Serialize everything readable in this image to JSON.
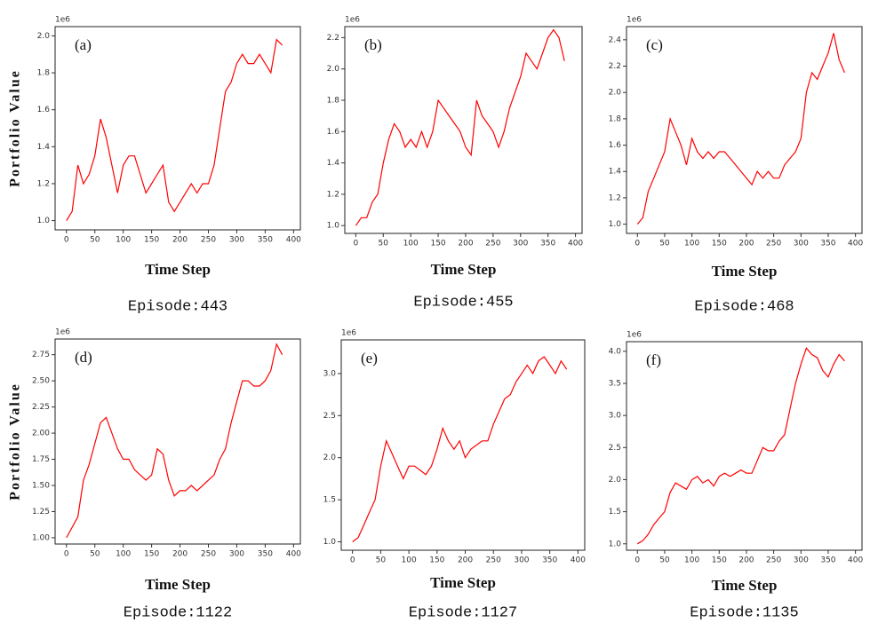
{
  "chart_data": [
    {
      "type": "line",
      "annotation": "(a)",
      "offset_label": "1e6",
      "xlabel": "Time Step",
      "ylabel": "Portfolio Value",
      "caption": "Episode:443",
      "color": "#ff0000",
      "x": [
        0,
        10,
        20,
        30,
        40,
        50,
        60,
        70,
        80,
        90,
        100,
        110,
        120,
        130,
        140,
        150,
        160,
        170,
        180,
        190,
        200,
        210,
        220,
        230,
        240,
        250,
        260,
        270,
        280,
        290,
        300,
        310,
        320,
        330,
        340,
        350,
        360,
        370,
        380
      ],
      "values": [
        1.0,
        1.05,
        1.3,
        1.2,
        1.25,
        1.35,
        1.55,
        1.45,
        1.3,
        1.15,
        1.3,
        1.35,
        1.35,
        1.25,
        1.15,
        1.2,
        1.25,
        1.3,
        1.1,
        1.05,
        1.1,
        1.15,
        1.2,
        1.15,
        1.2,
        1.2,
        1.3,
        1.5,
        1.7,
        1.75,
        1.85,
        1.9,
        1.85,
        1.85,
        1.9,
        1.85,
        1.8,
        1.98,
        1.95
      ],
      "xlim": [
        -20,
        412
      ],
      "xticks": [
        0,
        50,
        100,
        150,
        200,
        250,
        300,
        350,
        400
      ],
      "ylim": [
        0.95,
        2.05
      ],
      "yticks": [
        {
          "value": 1,
          "label": "1.0"
        },
        1.2,
        1.4,
        1.6,
        1.8,
        {
          "value": 2,
          "label": "2.0"
        }
      ]
    },
    {
      "type": "line",
      "annotation": "(b)",
      "offset_label": "1e6",
      "xlabel": "Time Step",
      "caption": "Episode:455",
      "color": "#ff0000",
      "x": [
        0,
        10,
        20,
        30,
        40,
        50,
        60,
        70,
        80,
        90,
        100,
        110,
        120,
        130,
        140,
        150,
        160,
        170,
        180,
        190,
        200,
        210,
        220,
        230,
        240,
        250,
        260,
        270,
        280,
        290,
        300,
        310,
        320,
        330,
        340,
        350,
        360,
        370,
        380
      ],
      "values": [
        1.0,
        1.05,
        1.05,
        1.15,
        1.2,
        1.4,
        1.55,
        1.65,
        1.6,
        1.5,
        1.55,
        1.5,
        1.6,
        1.5,
        1.6,
        1.8,
        1.75,
        1.7,
        1.65,
        1.6,
        1.5,
        1.45,
        1.8,
        1.7,
        1.65,
        1.6,
        1.5,
        1.6,
        1.75,
        1.85,
        1.95,
        2.1,
        2.05,
        2.0,
        2.1,
        2.2,
        2.25,
        2.2,
        2.05
      ],
      "xlim": [
        -20,
        412
      ],
      "xticks": [
        0,
        50,
        100,
        150,
        200,
        250,
        300,
        350,
        400
      ],
      "ylim": [
        0.95,
        2.27
      ],
      "yticks": [
        {
          "value": 1,
          "label": "1.0"
        },
        1.2,
        1.4,
        1.6,
        1.8,
        {
          "value": 2,
          "label": "2.0"
        },
        2.2
      ]
    },
    {
      "type": "line",
      "annotation": "(c)",
      "offset_label": "1e6",
      "xlabel": "Time Step",
      "caption": "Episode:468",
      "color": "#ff0000",
      "x": [
        0,
        10,
        20,
        30,
        40,
        50,
        60,
        70,
        80,
        90,
        100,
        110,
        120,
        130,
        140,
        150,
        160,
        170,
        180,
        190,
        200,
        210,
        220,
        230,
        240,
        250,
        260,
        270,
        280,
        290,
        300,
        310,
        320,
        330,
        340,
        350,
        360,
        370,
        380
      ],
      "values": [
        1.0,
        1.05,
        1.25,
        1.35,
        1.45,
        1.55,
        1.8,
        1.7,
        1.6,
        1.45,
        1.65,
        1.55,
        1.5,
        1.55,
        1.5,
        1.55,
        1.55,
        1.5,
        1.45,
        1.4,
        1.35,
        1.3,
        1.4,
        1.35,
        1.4,
        1.35,
        1.35,
        1.45,
        1.5,
        1.55,
        1.65,
        2.0,
        2.15,
        2.1,
        2.2,
        2.3,
        2.45,
        2.25,
        2.15
      ],
      "xlim": [
        -20,
        412
      ],
      "xticks": [
        0,
        50,
        100,
        150,
        200,
        250,
        300,
        350,
        400
      ],
      "ylim": [
        0.93,
        2.5
      ],
      "yticks": [
        {
          "value": 1,
          "label": "1.0"
        },
        1.2,
        1.4,
        1.6,
        1.8,
        {
          "value": 2,
          "label": "2.0"
        },
        2.2,
        2.4
      ]
    },
    {
      "type": "line",
      "annotation": "(d)",
      "offset_label": "1e6",
      "xlabel": "Time Step",
      "ylabel": "Portfolio Value",
      "caption": "Episode:1122",
      "color": "#ff0000",
      "x": [
        0,
        10,
        20,
        30,
        40,
        50,
        60,
        70,
        80,
        90,
        100,
        110,
        120,
        130,
        140,
        150,
        160,
        170,
        180,
        190,
        200,
        210,
        220,
        230,
        240,
        250,
        260,
        270,
        280,
        290,
        300,
        310,
        320,
        330,
        340,
        350,
        360,
        370,
        380
      ],
      "values": [
        1.0,
        1.1,
        1.2,
        1.55,
        1.7,
        1.9,
        2.1,
        2.15,
        2.0,
        1.85,
        1.75,
        1.75,
        1.65,
        1.6,
        1.55,
        1.6,
        1.85,
        1.8,
        1.55,
        1.4,
        1.45,
        1.45,
        1.5,
        1.45,
        1.5,
        1.55,
        1.6,
        1.75,
        1.85,
        2.1,
        2.3,
        2.5,
        2.5,
        2.45,
        2.45,
        2.5,
        2.6,
        2.85,
        2.75
      ],
      "xlim": [
        -20,
        412
      ],
      "xticks": [
        0,
        50,
        100,
        150,
        200,
        250,
        300,
        350,
        400
      ],
      "ylim": [
        0.94,
        2.9
      ],
      "yticks": [
        {
          "value": 1,
          "label": "1.00"
        },
        1.25,
        {
          "value": 1.5,
          "label": "1.50"
        },
        1.75,
        {
          "value": 2,
          "label": "2.00"
        },
        2.25,
        {
          "value": 2.5,
          "label": "2.50"
        },
        2.75
      ]
    },
    {
      "type": "line",
      "annotation": "(e)",
      "offset_label": "1e6",
      "xlabel": "Time Step",
      "caption": "Episode:1127",
      "color": "#ff0000",
      "x": [
        0,
        10,
        20,
        30,
        40,
        50,
        60,
        70,
        80,
        90,
        100,
        110,
        120,
        130,
        140,
        150,
        160,
        170,
        180,
        190,
        200,
        210,
        220,
        230,
        240,
        250,
        260,
        270,
        280,
        290,
        300,
        310,
        320,
        330,
        340,
        350,
        360,
        370,
        380
      ],
      "values": [
        1.0,
        1.05,
        1.2,
        1.35,
        1.5,
        1.9,
        2.2,
        2.05,
        1.9,
        1.75,
        1.9,
        1.9,
        1.85,
        1.8,
        1.9,
        2.1,
        2.35,
        2.2,
        2.1,
        2.2,
        2.0,
        2.1,
        2.15,
        2.2,
        2.2,
        2.4,
        2.55,
        2.7,
        2.75,
        2.9,
        3.0,
        3.1,
        3.0,
        3.15,
        3.2,
        3.1,
        3.0,
        3.15,
        3.05
      ],
      "xlim": [
        -20,
        412
      ],
      "xticks": [
        0,
        50,
        100,
        150,
        200,
        250,
        300,
        350,
        400
      ],
      "ylim": [
        0.9,
        3.4
      ],
      "yticks": [
        {
          "value": 1,
          "label": "1.0"
        },
        1.5,
        {
          "value": 2,
          "label": "2.0"
        },
        2.5,
        {
          "value": 3,
          "label": "3.0"
        }
      ]
    },
    {
      "type": "line",
      "annotation": "(f)",
      "offset_label": "1e6",
      "xlabel": "Time Step",
      "caption": "Episode:1135",
      "color": "#ff0000",
      "x": [
        0,
        10,
        20,
        30,
        40,
        50,
        60,
        70,
        80,
        90,
        100,
        110,
        120,
        130,
        140,
        150,
        160,
        170,
        180,
        190,
        200,
        210,
        220,
        230,
        240,
        250,
        260,
        270,
        280,
        290,
        300,
        310,
        320,
        330,
        340,
        350,
        360,
        370,
        380
      ],
      "values": [
        1.0,
        1.05,
        1.15,
        1.3,
        1.4,
        1.5,
        1.8,
        1.95,
        1.9,
        1.85,
        2.0,
        2.05,
        1.95,
        2.0,
        1.9,
        2.05,
        2.1,
        2.05,
        2.1,
        2.15,
        2.1,
        2.1,
        2.3,
        2.5,
        2.45,
        2.45,
        2.6,
        2.7,
        3.1,
        3.5,
        3.8,
        4.05,
        3.95,
        3.9,
        3.7,
        3.6,
        3.8,
        3.95,
        3.85
      ],
      "xlim": [
        -20,
        412
      ],
      "xticks": [
        0,
        50,
        100,
        150,
        200,
        250,
        300,
        350,
        400
      ],
      "ylim": [
        0.9,
        4.15
      ],
      "yticks": [
        {
          "value": 1,
          "label": "1.0"
        },
        1.5,
        {
          "value": 2,
          "label": "2.0"
        },
        2.5,
        {
          "value": 3,
          "label": "3.0"
        },
        3.5,
        {
          "value": 4,
          "label": "4.0"
        }
      ]
    }
  ]
}
